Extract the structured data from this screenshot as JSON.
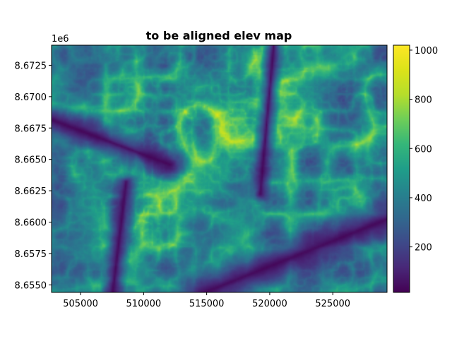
{
  "chart_data": {
    "type": "heatmap",
    "title": "to be aligned elev map",
    "xlabel": "",
    "ylabel": "",
    "y_offset_label": "1e6",
    "xlim": [
      502700,
      529300
    ],
    "ylim": [
      8654400,
      8674100
    ],
    "x_ticks": [
      505000,
      510000,
      515000,
      520000,
      525000
    ],
    "x_tick_labels": [
      "505000",
      "510000",
      "515000",
      "520000",
      "525000"
    ],
    "y_ticks": [
      8.655,
      8.6575,
      8.66,
      8.6625,
      8.665,
      8.6675,
      8.67,
      8.6725
    ],
    "y_tick_labels": [
      "8.6550",
      "8.6575",
      "8.6600",
      "8.6625",
      "8.6650",
      "8.6675",
      "8.6700",
      "8.6725"
    ],
    "colorbar": {
      "colormap": "viridis",
      "range": [
        15,
        1020
      ],
      "ticks": [
        200,
        400,
        600,
        800,
        1000
      ],
      "tick_labels": [
        "200",
        "400",
        "600",
        "800",
        "1000"
      ]
    },
    "elevation_range": [
      15,
      1020
    ],
    "grid": false
  }
}
